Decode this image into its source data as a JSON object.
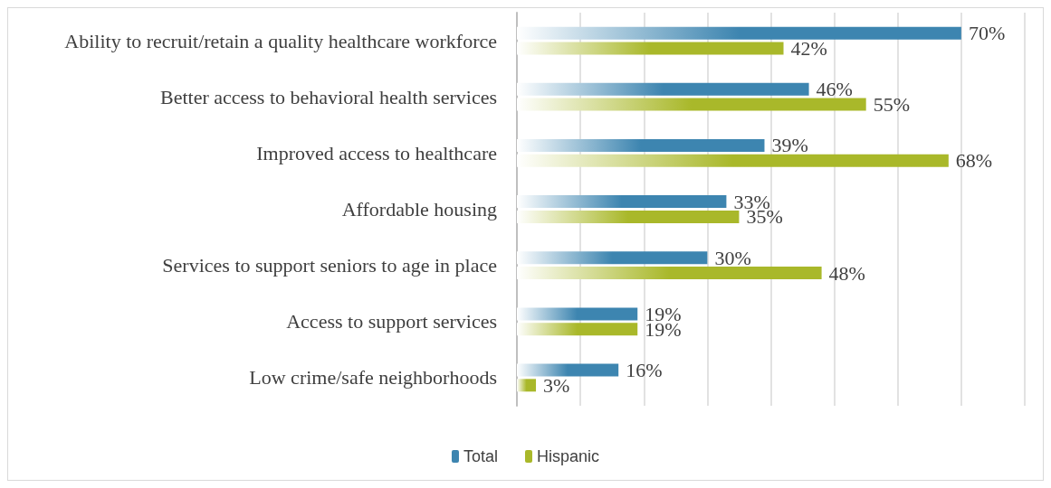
{
  "chart_data": {
    "type": "bar",
    "orientation": "horizontal",
    "categories": [
      "Ability to recruit/retain a quality healthcare workforce",
      "Better access to behavioral health services",
      "Improved access to healthcare",
      "Affordable housing",
      "Services to support seniors to age in place",
      "Access to support services",
      "Low crime/safe neighborhoods"
    ],
    "series": [
      {
        "name": "Total",
        "color": "#3d85b0",
        "values": [
          70,
          46,
          39,
          33,
          30,
          19,
          16
        ],
        "value_labels": [
          "70%",
          "46%",
          "39%",
          "33%",
          "30%",
          "19%",
          "16%"
        ]
      },
      {
        "name": "Hispanic",
        "color": "#a9b82a",
        "values": [
          42,
          55,
          68,
          35,
          48,
          19,
          3
        ],
        "value_labels": [
          "42%",
          "55%",
          "68%",
          "35%",
          "48%",
          "19%",
          "3%"
        ]
      }
    ],
    "xlim": [
      0,
      80
    ],
    "xticks": [
      {
        "value": 0,
        "label": null
      },
      {
        "value": 10,
        "label": null
      },
      {
        "value": 20,
        "label": null
      },
      {
        "value": 30,
        "label": null
      },
      {
        "value": 40,
        "label": null
      },
      {
        "value": 50,
        "label": null
      },
      {
        "value": 60,
        "label": null
      },
      {
        "value": 70,
        "label": null
      },
      {
        "value": 80,
        "label": null
      }
    ],
    "tick_labels": "y",
    "grid": "x",
    "legend": "bottom"
  }
}
